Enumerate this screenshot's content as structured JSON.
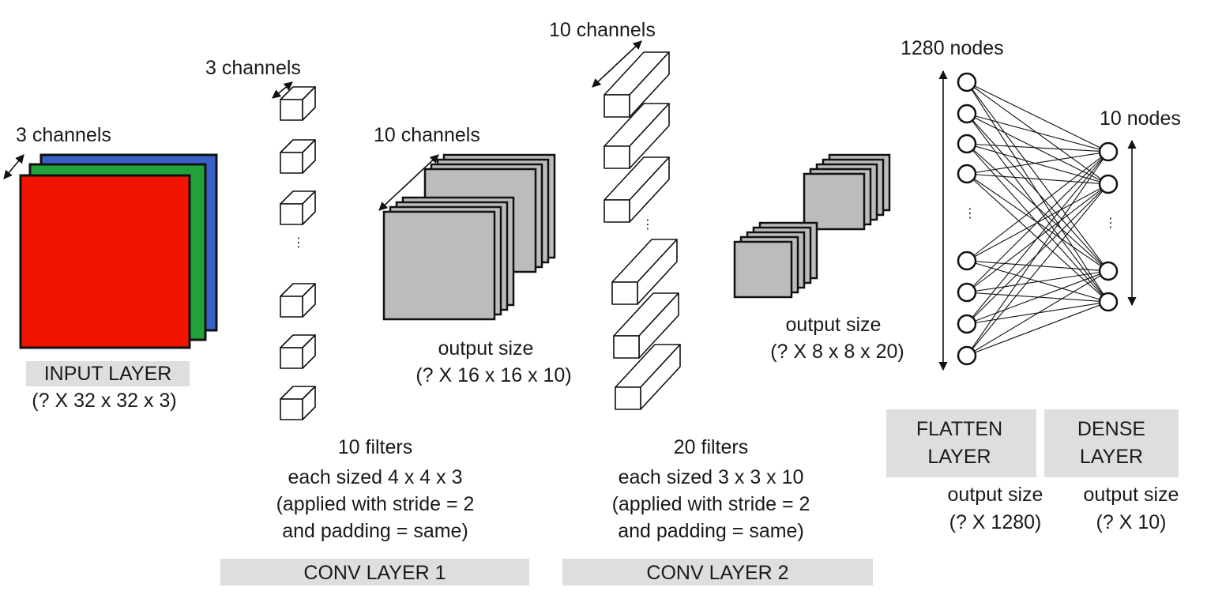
{
  "input": {
    "channels": "3 channels",
    "name": "INPUT LAYER",
    "size": "(? X 32 x 32 x 3)"
  },
  "conv1": {
    "filter_channels": "3 channels",
    "output_channels": "10 channels",
    "output_label": "output size",
    "output_size": "(? X 16 x 16 x 10)",
    "filters": [
      "10 filters",
      "each sized 4 x 4 x 3",
      "(applied with stride = 2",
      "and padding = same)"
    ],
    "name": "CONV LAYER 1"
  },
  "conv2": {
    "filter_channels": "10 channels",
    "output_label": "output size",
    "output_size": "(? X 8 x 8 x 20)",
    "filters": [
      "20 filters",
      "each sized 3 x 3 x 10",
      "(applied with stride = 2",
      "and padding = same)"
    ],
    "name": "CONV LAYER 2"
  },
  "flatten": {
    "nodes": "1280 nodes",
    "name": [
      "FLATTEN",
      "LAYER"
    ],
    "output_label": "output size",
    "output_size": "(? X 1280)"
  },
  "dense": {
    "nodes": "10 nodes",
    "name": [
      "DENSE",
      "LAYER"
    ],
    "output_label": "output size",
    "output_size": "(? X 10)"
  },
  "ellipsis": "⋮",
  "colors": {
    "red": "#f01400",
    "green": "#21a33a",
    "blue": "#3a5fc8",
    "feature": "#bcbcbc",
    "label_box": "#dedede"
  }
}
